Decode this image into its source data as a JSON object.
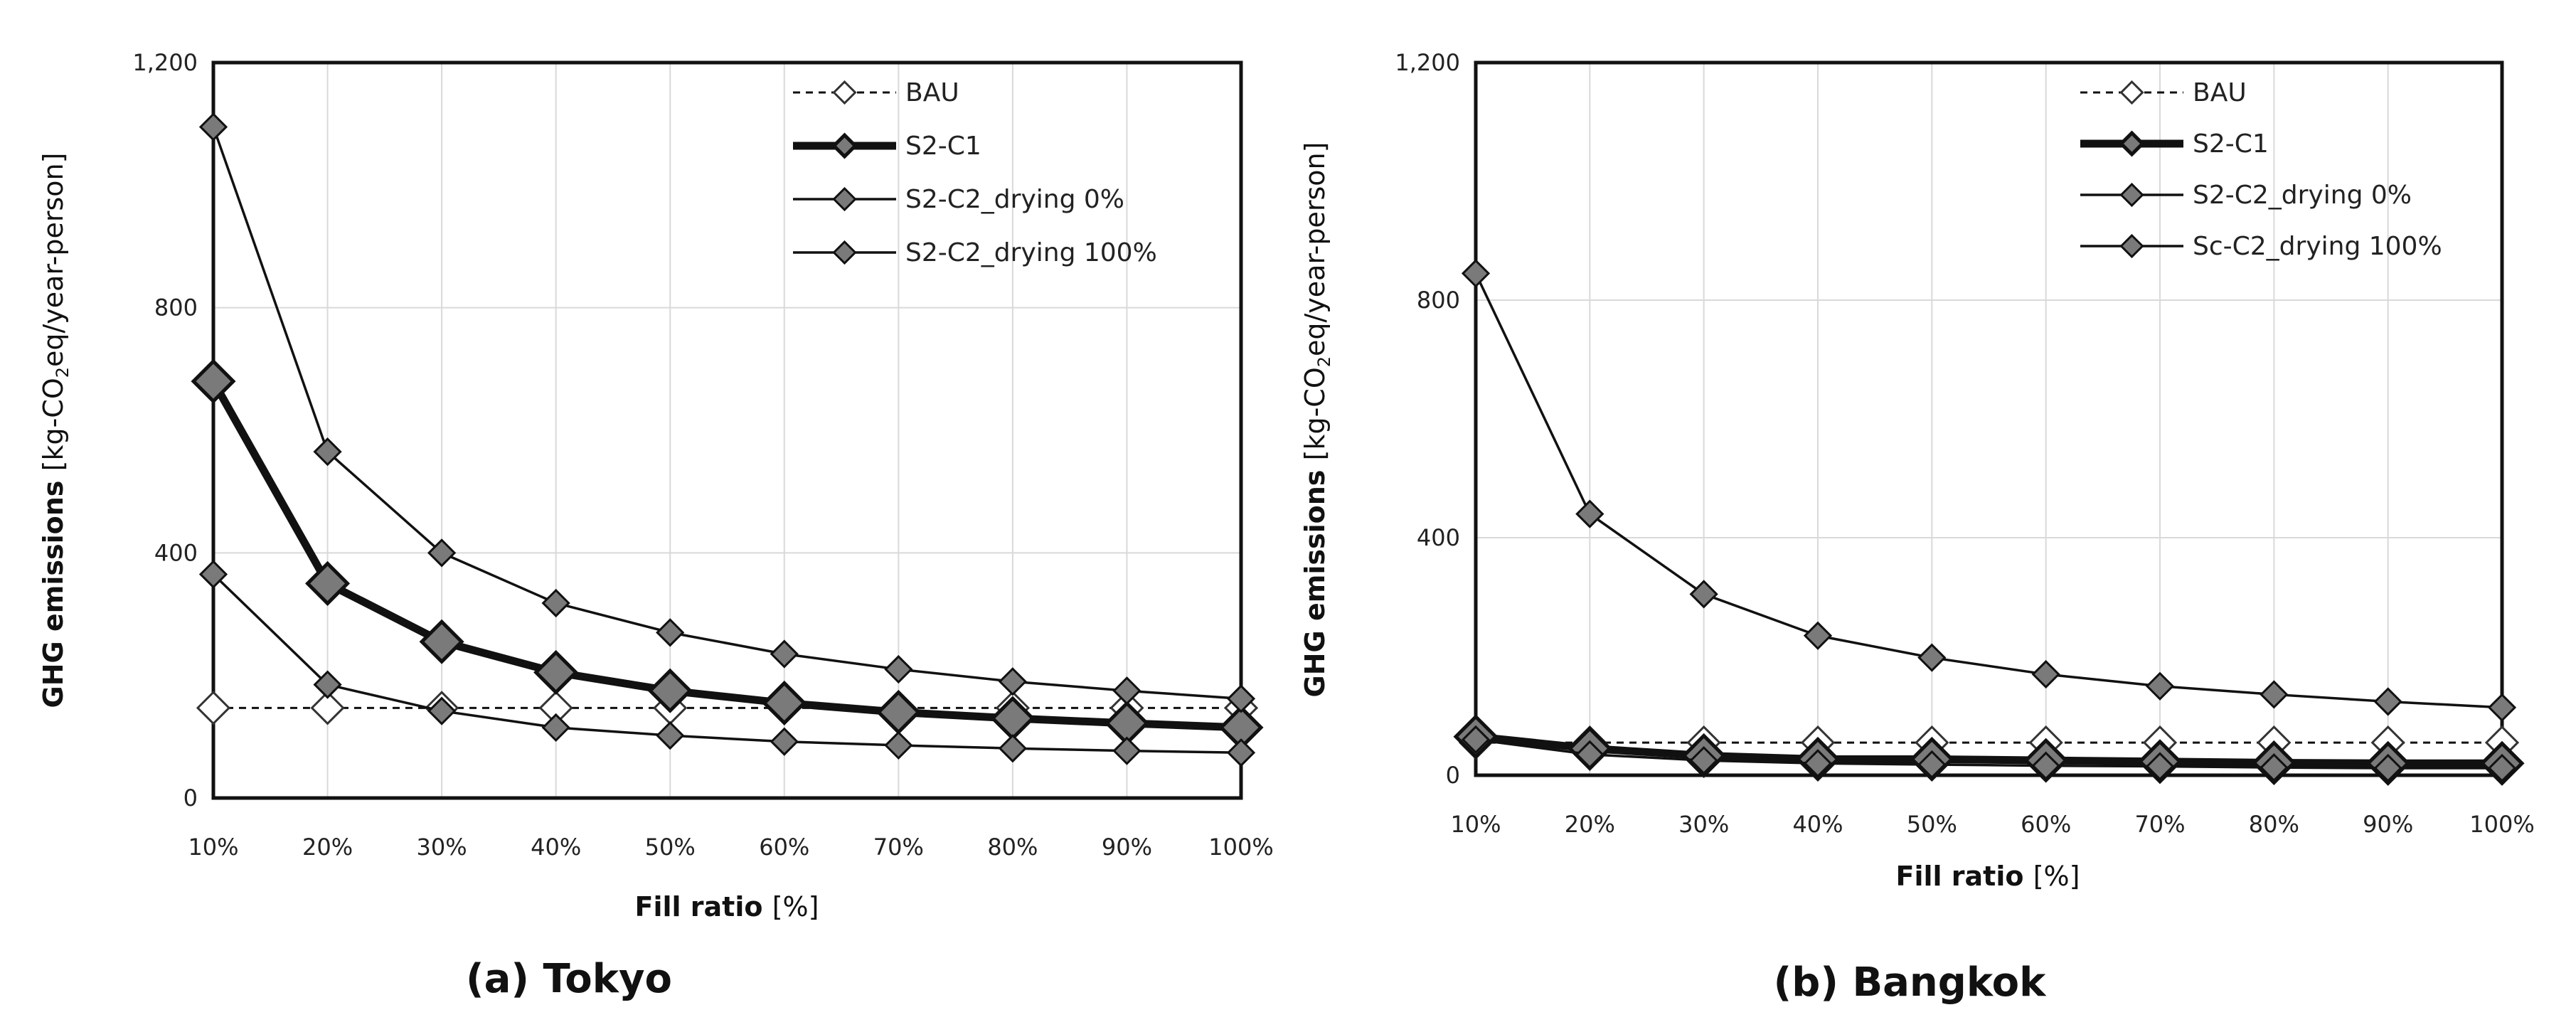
{
  "chart_data": [
    {
      "type": "line",
      "caption": "(a) Tokyo",
      "xlabel": "Fill ratio",
      "xlabel_unit": "[%]",
      "ylabel_prefix": "GHG emissions",
      "ylabel_unit": "[kg-CO",
      "ylabel_sub": "2",
      "ylabel_unit_end": "eq/year-person]",
      "ylim": [
        0,
        1200
      ],
      "yticks": [
        0,
        400,
        800,
        1200
      ],
      "ytick_labels": [
        "0",
        "400",
        "800",
        "1,200"
      ],
      "categories": [
        "10%",
        "20%",
        "30%",
        "40%",
        "50%",
        "60%",
        "70%",
        "80%",
        "90%",
        "100%"
      ],
      "series": [
        {
          "name": "BAU",
          "style": "bau",
          "values": [
            147,
            147,
            147,
            147,
            147,
            147,
            147,
            147,
            147,
            147
          ]
        },
        {
          "name": "S2-C1",
          "style": "thick",
          "values": [
            680,
            350,
            255,
            205,
            175,
            155,
            140,
            130,
            122,
            115
          ]
        },
        {
          "name": "S2-C2_drying 0%",
          "style": "thin",
          "values": [
            1095,
            565,
            400,
            318,
            270,
            235,
            210,
            190,
            175,
            162
          ]
        },
        {
          "name": "S2-C2_drying 100%",
          "style": "thin",
          "values": [
            365,
            185,
            142,
            115,
            102,
            92,
            86,
            81,
            77,
            74
          ]
        }
      ]
    },
    {
      "type": "line",
      "caption": "(b) Bangkok",
      "xlabel": "Fill ratio",
      "xlabel_unit": "[%]",
      "ylabel_prefix": "GHG emissions",
      "ylabel_unit": "[kg-CO",
      "ylabel_sub": "2",
      "ylabel_unit_end": "eq/year-person]",
      "ylim": [
        0,
        1200
      ],
      "yticks": [
        0,
        400,
        800,
        1200
      ],
      "ytick_labels": [
        "0",
        "400",
        "800",
        "1,200"
      ],
      "categories": [
        "10%",
        "20%",
        "30%",
        "40%",
        "50%",
        "60%",
        "70%",
        "80%",
        "90%",
        "100%"
      ],
      "series": [
        {
          "name": "BAU",
          "style": "bau",
          "values": [
            55,
            55,
            55,
            55,
            55,
            55,
            55,
            55,
            55,
            55
          ]
        },
        {
          "name": "S2-C1",
          "style": "thick",
          "values": [
            65,
            45,
            33,
            27,
            27,
            25,
            23,
            21,
            20,
            20
          ]
        },
        {
          "name": "S2-C2_drying 0%",
          "style": "thin",
          "values": [
            845,
            440,
            305,
            235,
            198,
            170,
            150,
            136,
            124,
            114
          ]
        },
        {
          "name": "Sc-C2_drying 100%",
          "style": "thin",
          "values": [
            60,
            35,
            25,
            20,
            18,
            16,
            15,
            13,
            12,
            12
          ]
        }
      ]
    }
  ]
}
